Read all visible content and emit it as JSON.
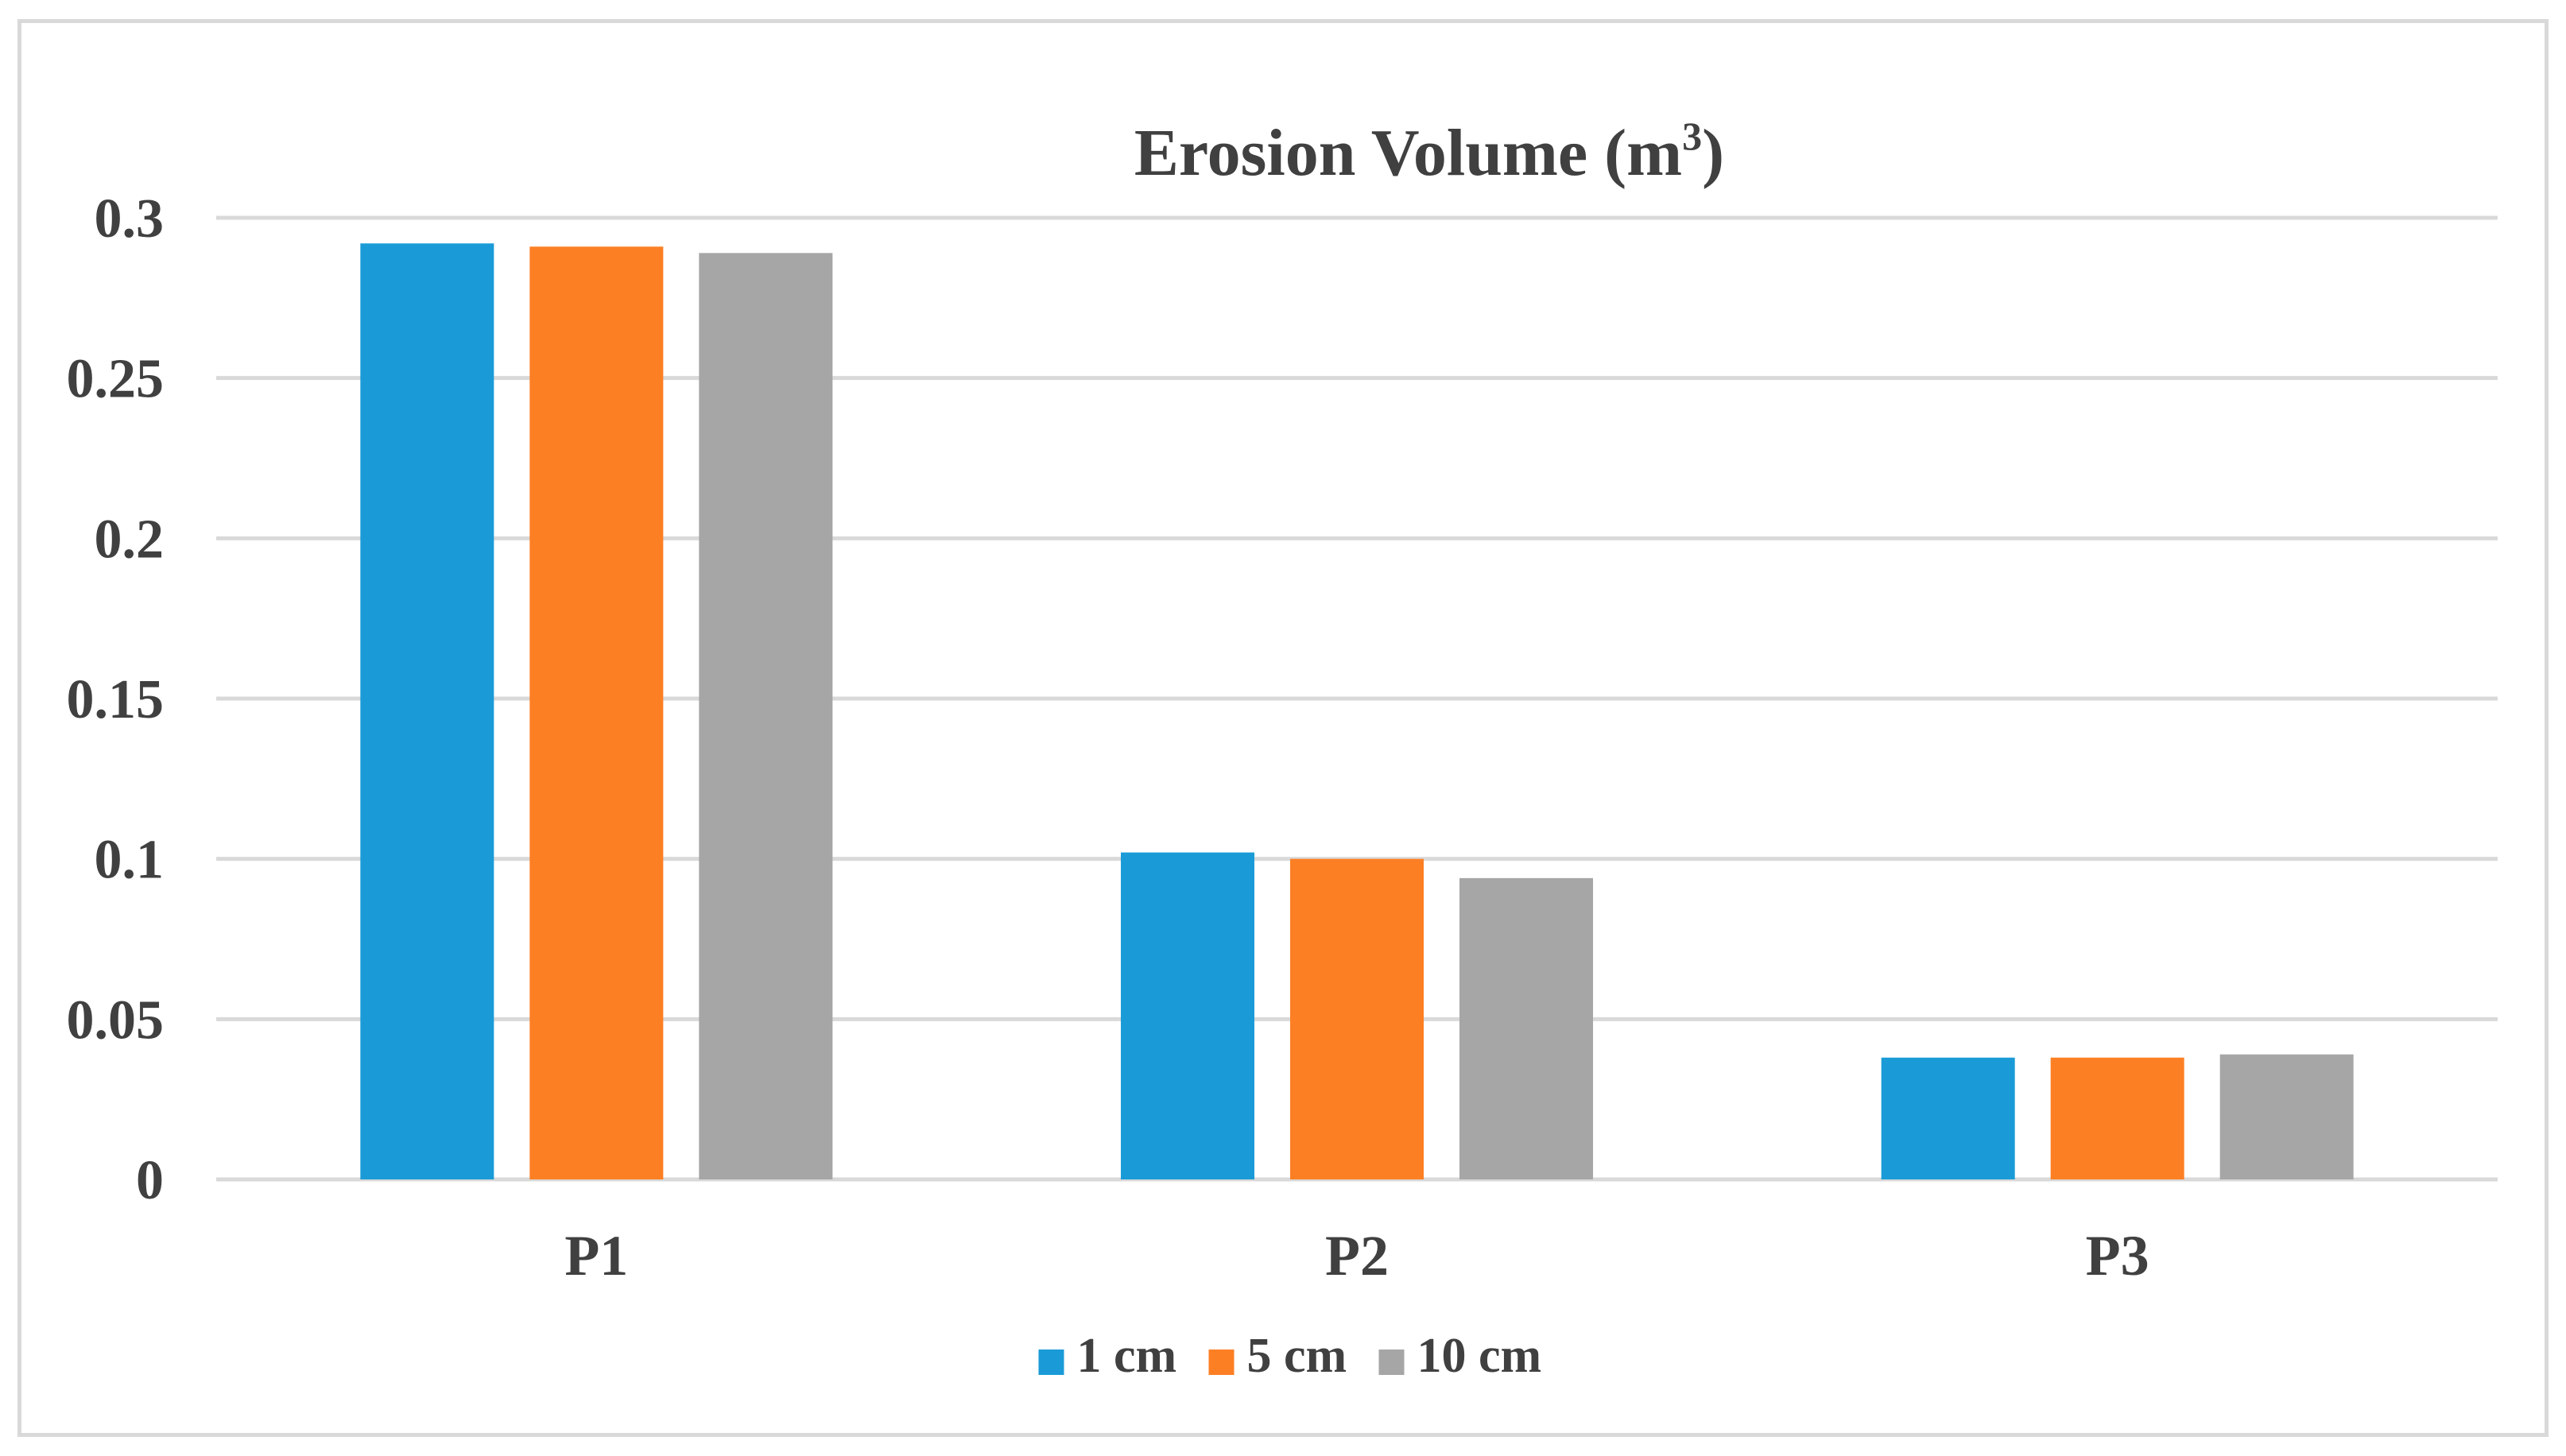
{
  "chart_data": {
    "type": "bar",
    "title": "Erosion Volume (m",
    "title_superscript": "3",
    "title_closing": ")",
    "categories": [
      "P1",
      "P2",
      "P3"
    ],
    "series": [
      {
        "name": "1 cm",
        "color": "#1a9bd7",
        "values": [
          0.292,
          0.102,
          0.038
        ]
      },
      {
        "name": "5 cm",
        "color": "#fd7f24",
        "values": [
          0.291,
          0.1,
          0.038
        ]
      },
      {
        "name": "10 cm",
        "color": "#a6a6a6",
        "values": [
          0.289,
          0.094,
          0.039
        ]
      }
    ],
    "yticks": [
      "0",
      "0.05",
      "0.1",
      "0.15",
      "0.2",
      "0.25",
      "0.3"
    ],
    "ylim": [
      0,
      0.3
    ],
    "grid": true,
    "legend_position": "bottom",
    "xlabel": "",
    "ylabel": ""
  },
  "colors": {
    "grid": "#d9d9d9",
    "text": "#404040",
    "frame": "#d9d9d9"
  }
}
